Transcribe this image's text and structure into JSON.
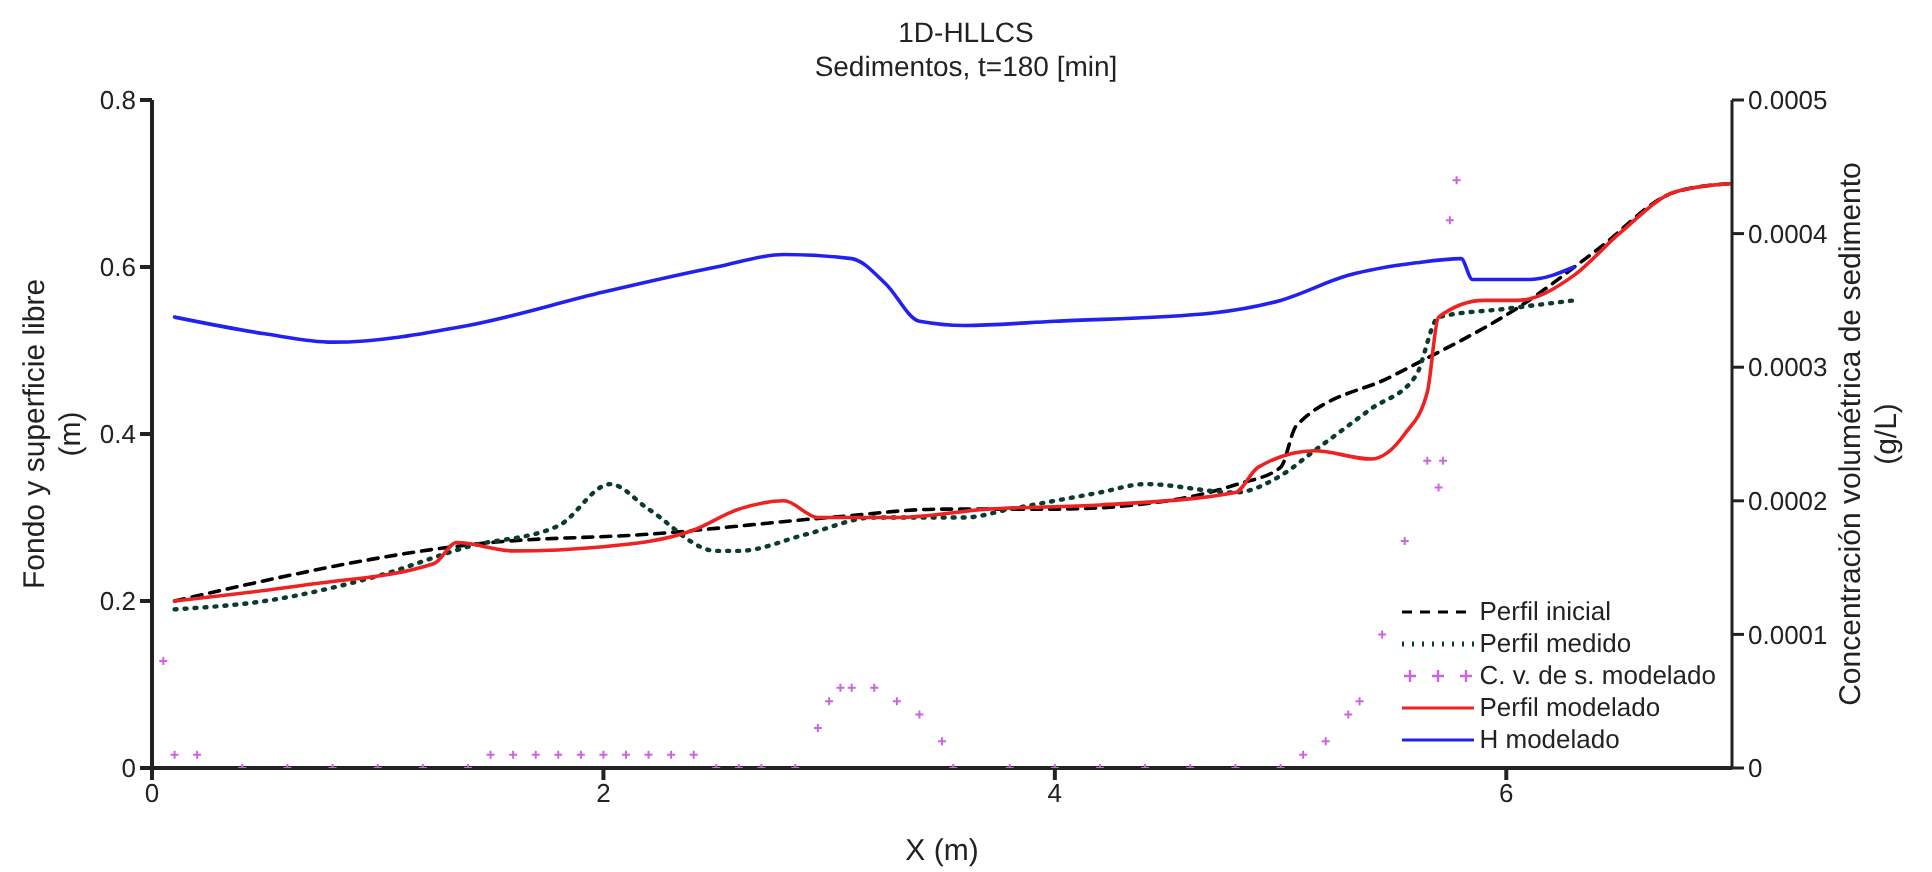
{
  "chart_data": {
    "type": "line",
    "title": "1D-HLLCS",
    "subtitle": "Sedimentos, t=180 [min]",
    "xlabel": "X (m)",
    "ylabel": "Fondo y superficie libre\n(m)",
    "y2label": "Concentración volumétrica de sedimento\n(g/L)",
    "xlim": [
      0,
      7
    ],
    "xticks": [
      0,
      2,
      4,
      6
    ],
    "ylim": [
      0,
      0.8
    ],
    "yticks": [
      0,
      0.2,
      0.4,
      0.6,
      0.8
    ],
    "y2lim": [
      0,
      0.0005
    ],
    "y2ticks": [
      0,
      0.0001,
      0.0002,
      0.0003,
      0.0004,
      0.0005
    ],
    "grid": false,
    "legend": "bottom right",
    "series": [
      {
        "name": "Perfil inicial",
        "line_style": "dashed",
        "color": "#000000",
        "x": [
          0.1,
          1.5,
          2.2,
          3.0,
          3.5,
          4.0,
          4.5,
          4.81,
          5.0,
          5.07,
          5.5,
          6.1,
          6.4,
          6.75,
          7.0
        ],
        "values": [
          0.2,
          0.27,
          0.28,
          0.3,
          0.31,
          0.31,
          0.32,
          0.34,
          0.36,
          0.41,
          0.47,
          0.56,
          0.62,
          0.69,
          0.7
        ]
      },
      {
        "name": "Perfil medido",
        "line_style": "dotted",
        "color": "#0b3b2f",
        "x": [
          0.1,
          0.5,
          1.0,
          1.4,
          1.8,
          2.03,
          2.2,
          2.5,
          2.6,
          2.9,
          3.2,
          3.6,
          3.8,
          4.2,
          4.4,
          4.8,
          5.0,
          5.15,
          5.4,
          5.6,
          5.7,
          6.0,
          6.3
        ],
        "values": [
          0.19,
          0.2,
          0.23,
          0.265,
          0.29,
          0.34,
          0.31,
          0.26,
          0.26,
          0.28,
          0.3,
          0.3,
          0.31,
          0.33,
          0.34,
          0.33,
          0.35,
          0.38,
          0.43,
          0.47,
          0.54,
          0.55,
          0.56
        ]
      },
      {
        "name": "C. v. de s. modelado",
        "type": "scatter",
        "marker": "cross",
        "axis": "y2",
        "color": "#cc66dd",
        "x": [
          0.05,
          0.1,
          0.2,
          0.4,
          0.6,
          0.8,
          1.0,
          1.2,
          1.4,
          1.5,
          1.6,
          1.7,
          1.8,
          1.9,
          2.0,
          2.1,
          2.2,
          2.3,
          2.4,
          2.5,
          2.6,
          2.7,
          2.85,
          2.95,
          3.0,
          3.05,
          3.1,
          3.2,
          3.3,
          3.4,
          3.5,
          3.55,
          3.8,
          4.0,
          4.2,
          4.4,
          4.6,
          4.8,
          5.0,
          5.1,
          5.2,
          5.3,
          5.35,
          5.45,
          5.55,
          5.65,
          5.7,
          5.72,
          5.75,
          5.78
        ],
        "values": [
          8e-05,
          1e-05,
          1e-05,
          0,
          0,
          0,
          0,
          0,
          0,
          1e-05,
          1e-05,
          1e-05,
          1e-05,
          1e-05,
          1e-05,
          1e-05,
          1e-05,
          1e-05,
          1e-05,
          0,
          0,
          0,
          0,
          3e-05,
          5e-05,
          6e-05,
          6e-05,
          6e-05,
          5e-05,
          4e-05,
          2e-05,
          0,
          0,
          0,
          0,
          0,
          0,
          0,
          0,
          1e-05,
          2e-05,
          4e-05,
          5e-05,
          0.0001,
          0.00017,
          0.00023,
          0.00021,
          0.00023,
          0.00041,
          0.00044
        ]
      },
      {
        "name": "Perfil modelado",
        "line_style": "solid",
        "color": "#ee2222",
        "x": [
          0.1,
          0.7,
          1.25,
          1.35,
          1.6,
          2.0,
          2.4,
          2.6,
          2.8,
          2.95,
          3.3,
          3.7,
          4.2,
          4.8,
          4.9,
          5.15,
          5.4,
          5.55,
          5.65,
          5.7,
          5.9,
          6.05,
          6.3,
          6.5,
          6.75,
          7.0
        ],
        "values": [
          0.2,
          0.22,
          0.245,
          0.27,
          0.26,
          0.265,
          0.285,
          0.31,
          0.32,
          0.3,
          0.3,
          0.31,
          0.315,
          0.33,
          0.36,
          0.38,
          0.37,
          0.4,
          0.45,
          0.54,
          0.56,
          0.56,
          0.59,
          0.64,
          0.69,
          0.7
        ]
      },
      {
        "name": "H modelado",
        "line_style": "solid",
        "color": "#2222ee",
        "x": [
          0.1,
          0.5,
          0.8,
          1.4,
          2.0,
          2.5,
          2.8,
          3.1,
          3.25,
          3.4,
          3.6,
          4.0,
          4.7,
          5.0,
          5.3,
          5.6,
          5.8,
          5.85,
          6.1,
          6.3
        ],
        "values": [
          0.54,
          0.52,
          0.51,
          0.53,
          0.57,
          0.6,
          0.615,
          0.61,
          0.58,
          0.535,
          0.53,
          0.535,
          0.545,
          0.56,
          0.59,
          0.605,
          0.61,
          0.585,
          0.585,
          0.6
        ]
      }
    ]
  }
}
